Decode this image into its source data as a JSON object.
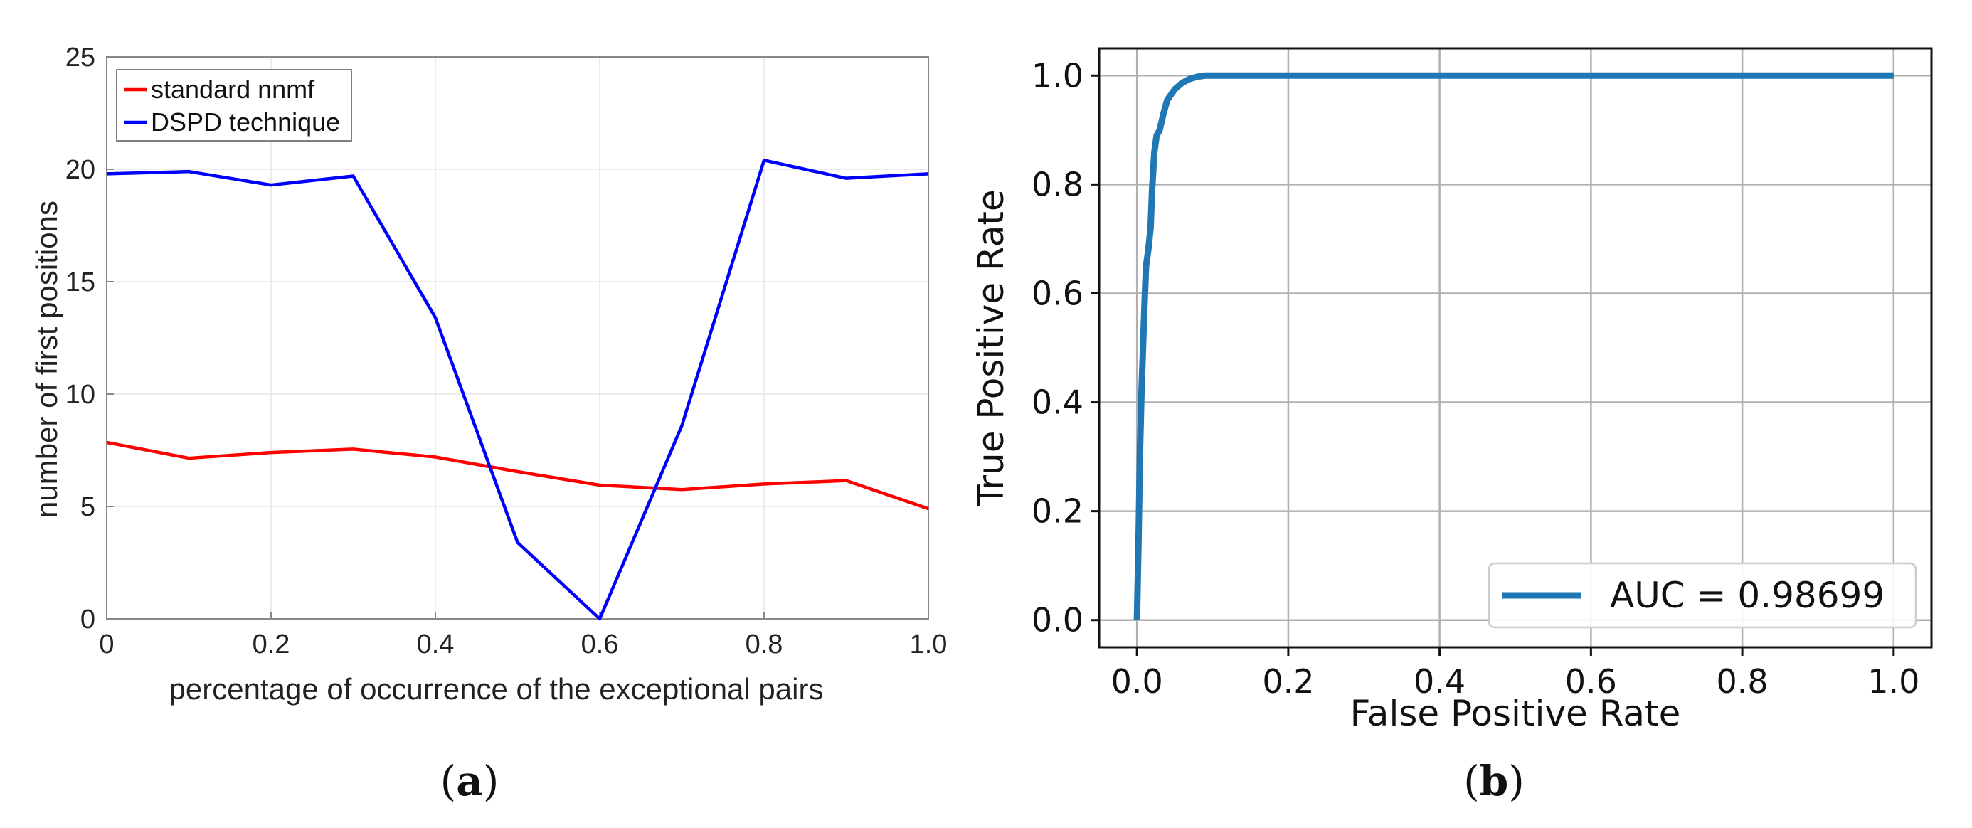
{
  "charts": [
    {
      "caption_letter": "a",
      "chart_data": {
        "type": "line",
        "title": "",
        "xlabel": "percentage of occurrence of the exceptional pairs",
        "ylabel": "number of first positions",
        "x": [
          0,
          0.1,
          0.2,
          0.3,
          0.4,
          0.5,
          0.6,
          0.7,
          0.8,
          0.9,
          1.0
        ],
        "xlim": [
          0,
          1.0
        ],
        "ylim": [
          0,
          25
        ],
        "xticks": [
          0,
          0.2,
          0.4,
          0.6,
          0.8,
          1.0
        ],
        "xtick_labels": [
          "0",
          "0.2",
          "0.4",
          "0.6",
          "0.8",
          "1.0"
        ],
        "yticks": [
          0,
          5,
          10,
          15,
          20,
          25
        ],
        "ytick_labels": [
          "0",
          "5",
          "10",
          "15",
          "20",
          "25"
        ],
        "grid": true,
        "legend_position": "top-left",
        "series": [
          {
            "name": "standard nnmf",
            "color": "#ff0000",
            "values": [
              7.85,
              7.15,
              7.4,
              7.55,
              7.2,
              6.55,
              5.95,
              5.75,
              6.0,
              6.15,
              4.9
            ]
          },
          {
            "name": "DSPD technique",
            "color": "#0000ff",
            "values": [
              19.8,
              19.9,
              19.3,
              19.7,
              13.4,
              3.4,
              0.0,
              8.6,
              20.4,
              19.6,
              19.8
            ]
          }
        ]
      }
    },
    {
      "caption_letter": "b",
      "chart_data": {
        "type": "line",
        "title": "",
        "xlabel": "False Positive Rate",
        "ylabel": "True Positive Rate",
        "xlim": [
          -0.05,
          1.05
        ],
        "ylim": [
          -0.05,
          1.05
        ],
        "xticks": [
          0,
          0.2,
          0.4,
          0.6,
          0.8,
          1.0
        ],
        "xtick_labels": [
          "0.0",
          "0.2",
          "0.4",
          "0.6",
          "0.8",
          "1.0"
        ],
        "yticks": [
          0,
          0.2,
          0.4,
          0.6,
          0.8,
          1.0
        ],
        "ytick_labels": [
          "0.0",
          "0.2",
          "0.4",
          "0.6",
          "0.8",
          "1.0"
        ],
        "grid": true,
        "legend_position": "bottom-right",
        "series": [
          {
            "name": "AUC = 0.98699",
            "color": "#1f77b4",
            "x": [
              0,
              0.002,
              0.004,
              0.006,
              0.008,
              0.01,
              0.012,
              0.015,
              0.018,
              0.02,
              0.023,
              0.026,
              0.03,
              0.035,
              0.04,
              0.045,
              0.05,
              0.06,
              0.07,
              0.08,
              0.09,
              0.1,
              0.12,
              1.0
            ],
            "y": [
              0,
              0.14,
              0.31,
              0.42,
              0.5,
              0.58,
              0.65,
              0.68,
              0.72,
              0.79,
              0.86,
              0.89,
              0.9,
              0.93,
              0.955,
              0.965,
              0.975,
              0.987,
              0.994,
              0.998,
              1.0,
              1.0,
              1.0,
              1.0
            ]
          }
        ]
      }
    }
  ]
}
